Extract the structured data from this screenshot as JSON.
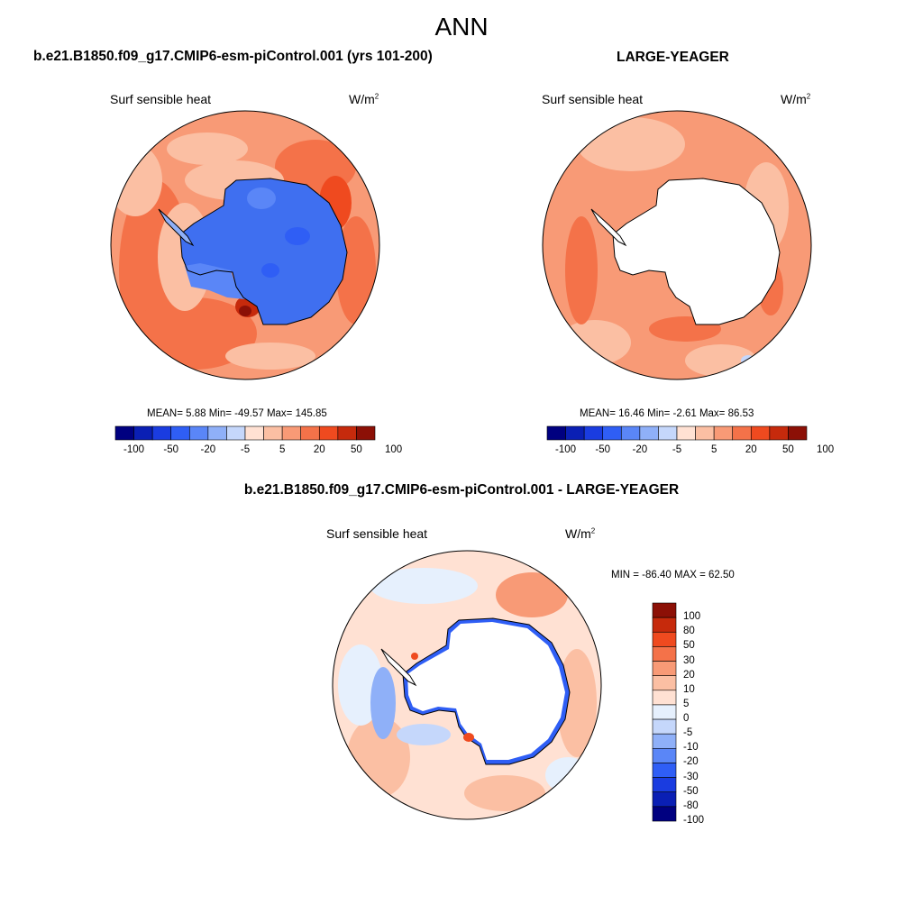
{
  "page": {
    "title": "ANN",
    "case1": "b.e21.B1850.f09_g17.CMIP6-esm-piControl.001 (yrs 101-200)",
    "case2": "LARGE-YEAGER",
    "diff_title": "b.e21.B1850.f09_g17.CMIP6-esm-piControl.001 - LARGE-YEAGER"
  },
  "panels": [
    {
      "id": "model",
      "variable": "Surf sensible heat",
      "units_base": "W/m",
      "units_exp": "2",
      "stats": "MEAN=   5.88  Min= -49.57  Max= 145.85",
      "colorbar_labels": [
        "-100",
        "-50",
        "-20",
        "-5",
        "5",
        "20",
        "50",
        "100"
      ]
    },
    {
      "id": "obs",
      "variable": "Surf sensible heat",
      "units_base": "W/m",
      "units_exp": "2",
      "stats": "MEAN=  16.46  Min=  -2.61  Max=  86.53",
      "colorbar_labels": [
        "-100",
        "-50",
        "-20",
        "-5",
        "5",
        "20",
        "50",
        "100"
      ]
    },
    {
      "id": "diff",
      "variable": "Surf sensible heat",
      "units_base": "W/m",
      "units_exp": "2",
      "stats": "MIN = -86.40 MAX =  62.50",
      "colorbar_labels": [
        "100",
        "80",
        "50",
        "30",
        "20",
        "10",
        "5",
        "0",
        "-5",
        "-10",
        "-20",
        "-30",
        "-50",
        "-80",
        "-100"
      ]
    }
  ],
  "colors": {
    "abs_scale": [
      "#000080",
      "#0a1fb4",
      "#1a3ce0",
      "#2f5ef5",
      "#5a86f7",
      "#8fb0f8",
      "#c5d7fb",
      "#ffe1d3",
      "#fbbfa3",
      "#f89a76",
      "#f47249",
      "#ef4a1f",
      "#c62a0c",
      "#8c1006"
    ],
    "diff_scale": [
      "#000080",
      "#0a1fb4",
      "#1a3ce0",
      "#2f5ef5",
      "#5a86f7",
      "#8fb0f8",
      "#c5d7fb",
      "#e6f0fd",
      "#ffe1d3",
      "#fbbfa3",
      "#f89a76",
      "#f47249",
      "#ef4a1f",
      "#c62a0c",
      "#8c1006"
    ],
    "land_model": "#3f6ff0",
    "coast": "#000000"
  }
}
